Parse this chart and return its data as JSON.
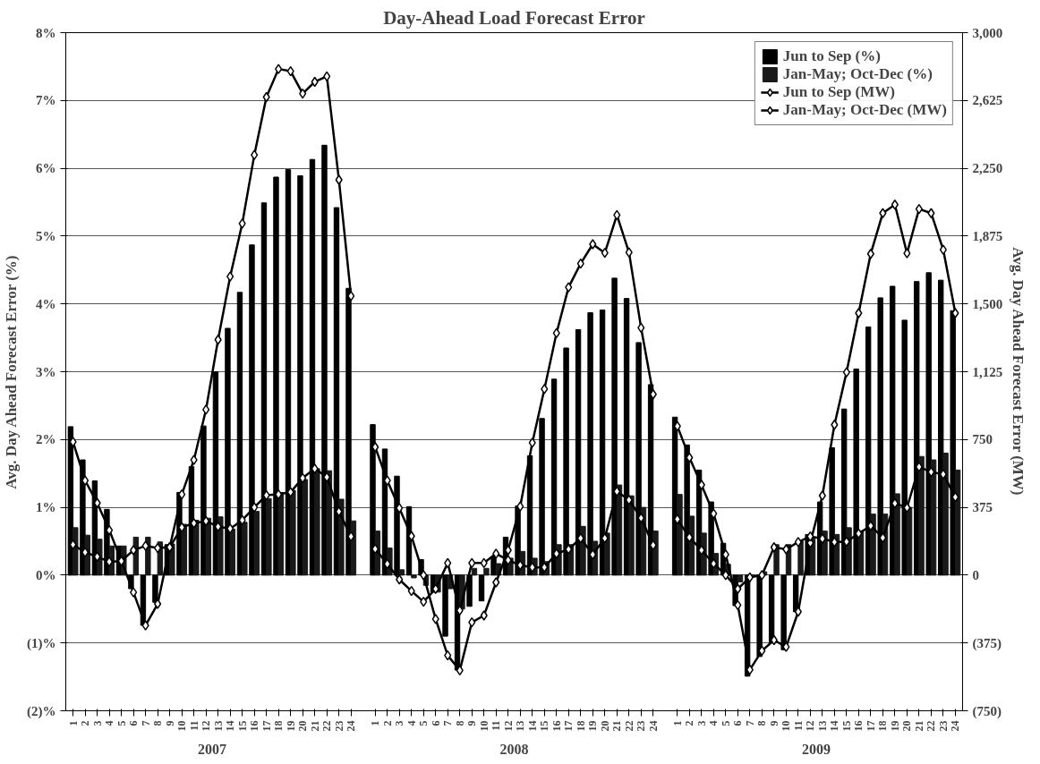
{
  "chart_data": {
    "type": "bar",
    "title": "Day-Ahead Load Forecast Error",
    "ylabel": "Avg. Day Ahead Forecast Error (%)",
    "y2label": "Avg. Day Ahead Forecast Error (MW)",
    "categories": [
      "1",
      "2",
      "3",
      "4",
      "5",
      "6",
      "7",
      "8",
      "9",
      "10",
      "11",
      "12",
      "13",
      "14",
      "15",
      "16",
      "17",
      "18",
      "19",
      "20",
      "21",
      "22",
      "23",
      "24",
      null,
      "1",
      "2",
      "3",
      "4",
      "5",
      "6",
      "7",
      "8",
      "9",
      "10",
      "11",
      "12",
      "13",
      "14",
      "15",
      "16",
      "17",
      "18",
      "19",
      "20",
      "21",
      "22",
      "23",
      "24",
      null,
      "1",
      "2",
      "3",
      "4",
      "5",
      "6",
      "7",
      "8",
      "9",
      "10",
      "11",
      "12",
      "13",
      "14",
      "15",
      "16",
      "17",
      "18",
      "19",
      "20",
      "21",
      "22",
      "23",
      "24"
    ],
    "annotations": [
      "2007",
      "2008",
      "2009"
    ],
    "series": [
      {
        "name": "Jun to Sep (%)",
        "color": "#000000",
        "values": [
          2.19,
          1.7,
          1.39,
          0.97,
          0.43,
          -0.2,
          -0.74,
          -0.4,
          0.45,
          1.22,
          1.6,
          2.2,
          3.0,
          3.64,
          4.17,
          4.87,
          5.49,
          5.87,
          5.98,
          5.89,
          6.13,
          6.34,
          5.42,
          4.23,
          null,
          2.22,
          1.86,
          1.46,
          1.01,
          0.23,
          -0.25,
          -0.9,
          -1.4,
          -0.46,
          -0.38,
          0.27,
          0.56,
          1.02,
          1.76,
          2.31,
          2.89,
          3.35,
          3.62,
          3.87,
          3.91,
          4.38,
          4.08,
          3.43,
          2.81,
          null,
          2.33,
          1.92,
          1.55,
          1.08,
          0.47,
          -0.45,
          -1.49,
          -1.2,
          -1.0,
          -1.1,
          -0.54,
          0.6,
          1.08,
          1.88,
          2.45,
          3.04,
          3.66,
          4.09,
          4.26,
          3.76,
          4.33,
          4.46,
          4.35,
          3.9
        ]
      },
      {
        "name": "Jan-May; Oct-Dec (%)",
        "color": "#1a1a1a",
        "values": [
          0.7,
          0.59,
          0.53,
          0.43,
          0.43,
          0.56,
          0.56,
          0.49,
          0.46,
          0.75,
          0.81,
          0.84,
          0.86,
          0.68,
          0.78,
          0.94,
          1.13,
          1.22,
          1.25,
          1.41,
          1.57,
          1.54,
          1.12,
          0.8,
          null,
          0.65,
          0.4,
          0.08,
          -0.04,
          -0.15,
          -0.25,
          -0.2,
          -0.5,
          0.1,
          0.1,
          0.17,
          0.25,
          0.35,
          0.25,
          0.2,
          0.45,
          0.45,
          0.72,
          0.5,
          0.62,
          1.33,
          1.17,
          1.0,
          0.65,
          null,
          1.19,
          0.87,
          0.62,
          0.32,
          0.16,
          -0.1,
          0.0,
          0.05,
          0.45,
          0.45,
          0.5,
          0.55,
          0.65,
          0.6,
          0.7,
          0.65,
          0.9,
          0.9,
          1.2,
          1.0,
          1.75,
          1.7,
          1.8,
          1.55
        ]
      },
      {
        "name": "Jun to Sep (MW)",
        "type": "line",
        "axis": "y2",
        "color": "#000000",
        "values": [
          737,
          523,
          399,
          249,
          78,
          -95,
          -278,
          -159,
          154,
          447,
          637,
          915,
          1302,
          1651,
          1944,
          2324,
          2644,
          2799,
          2787,
          2663,
          2728,
          2758,
          2186,
          1544,
          null,
          708,
          523,
          371,
          216,
          0,
          -242,
          -444,
          -527,
          -261,
          -223,
          -40,
          138,
          380,
          732,
          1029,
          1338,
          1592,
          1723,
          1830,
          1782,
          1991,
          1785,
          1368,
          1000,
          null,
          824,
          650,
          499,
          340,
          114,
          -166,
          -523,
          -418,
          -359,
          -397,
          -202,
          178,
          440,
          832,
          1122,
          1449,
          1777,
          2002,
          2049,
          1780,
          2025,
          2002,
          1800,
          1449
        ]
      },
      {
        "name": "Jan-May; Oct-Dec (MW)",
        "type": "line",
        "axis": "y2",
        "color": "#000000",
        "values": [
          169,
          126,
          102,
          74,
          78,
          138,
          162,
          150,
          154,
          264,
          287,
          299,
          268,
          257,
          304,
          375,
          442,
          447,
          459,
          537,
          589,
          542,
          352,
          214,
          null,
          145,
          62,
          -24,
          -88,
          -147,
          -76,
          67,
          -195,
          67,
          67,
          119,
          83,
          55,
          43,
          43,
          119,
          143,
          204,
          114,
          204,
          463,
          416,
          316,
          166,
          null,
          309,
          209,
          138,
          64,
          0,
          -76,
          -12,
          0,
          154,
          143,
          183,
          214,
          202,
          183,
          185,
          230,
          273,
          207,
          397,
          373,
          599,
          570,
          558,
          432
        ]
      }
    ],
    "ylim": [
      -2,
      8
    ],
    "yticks": [
      {
        "value": -2,
        "label": "(2)%"
      },
      {
        "value": -1,
        "label": "(1)%"
      },
      {
        "value": 0,
        "label": "0%"
      },
      {
        "value": 1,
        "label": "1%"
      },
      {
        "value": 2,
        "label": "2%"
      },
      {
        "value": 3,
        "label": "3%"
      },
      {
        "value": 4,
        "label": "4%"
      },
      {
        "value": 5,
        "label": "5%"
      },
      {
        "value": 6,
        "label": "6%"
      },
      {
        "value": 7,
        "label": "7%"
      },
      {
        "value": 8,
        "label": "8%"
      }
    ],
    "y2lim": [
      -750,
      3000
    ],
    "y2ticks": [
      {
        "value": -750,
        "label": "(750)"
      },
      {
        "value": -375,
        "label": "(375)"
      },
      0,
      375,
      750,
      {
        "value": 1125,
        "label": "1,125"
      },
      {
        "value": 1500,
        "label": "1,500"
      },
      {
        "value": 1875,
        "label": "1,875"
      },
      {
        "value": 2250,
        "label": "2,250"
      },
      {
        "value": 2625,
        "label": "2,625"
      },
      {
        "value": 3000,
        "label": "3,000"
      }
    ],
    "grid": "y",
    "legend": "top right",
    "marker": "diamond",
    "line_style": "solid"
  }
}
